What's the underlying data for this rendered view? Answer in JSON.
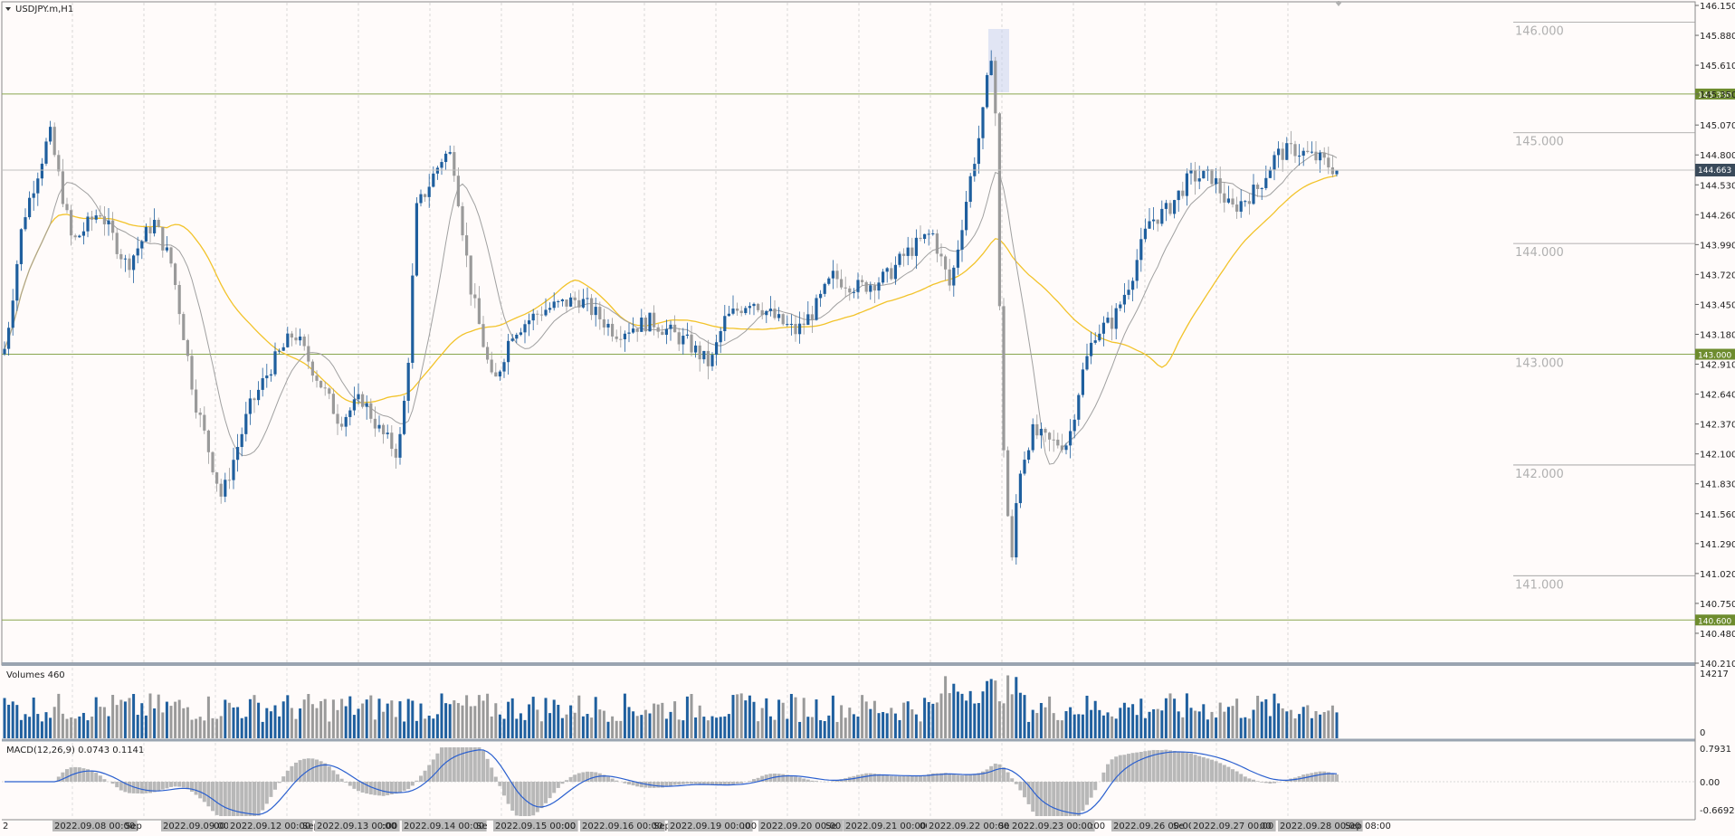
{
  "window": {
    "title": "USDJPY.m,H1"
  },
  "panes": {
    "volumes_label": "Volumes 460",
    "macd_label": "MACD(12,26,9) 0.0743 0.1141"
  },
  "price_axis": {
    "ticks": [
      "146.150",
      "145.880",
      "145.610",
      "145.350",
      "145.070",
      "144.800",
      "144.530",
      "144.260",
      "143.990",
      "143.720",
      "143.450",
      "143.180",
      "142.910",
      "142.640",
      "142.370",
      "142.100",
      "141.830",
      "141.560",
      "141.290",
      "141.020",
      "140.750",
      "140.480",
      "140.210"
    ],
    "current_price": "144.663"
  },
  "volume_axis": {
    "max": "14217",
    "min": "0"
  },
  "macd_axis": {
    "top": "0.7931",
    "zero": "0.00",
    "bottom": "-0.6692"
  },
  "levels": [
    {
      "label": "146.000"
    },
    {
      "label": "145.000"
    },
    {
      "label": "144.000"
    },
    {
      "label": "143.000"
    },
    {
      "label": "142.000"
    },
    {
      "label": "141.000"
    }
  ],
  "horizontal_lines": [
    {
      "label": "145.350"
    },
    {
      "label": "143.000"
    },
    {
      "label": "140.600"
    }
  ],
  "x_labels": [
    "2",
    "2022.09.08 00:00",
    "Sep",
    "2022.09.09 00:00",
    "00",
    "2022.09.12 00:00",
    "Sep",
    "2022.09.13 00:00",
    ":00",
    "2022.09.14 00:00",
    "Se",
    "2022.09.15 00:00",
    ":00",
    "2022.09.16 00:00",
    "Sep",
    "2022.09.19 00:00",
    ":00",
    "2022.09.20 00:00",
    "Se",
    "2022.09.21 00:00",
    "00",
    "2022.09.22 00:00",
    "Se",
    "2022.09.23 00:00",
    ":00",
    "2022.09.26 00:00",
    "Se",
    "2022.09.27 00:00",
    "00",
    "2022.09.28 00:00",
    "Sep 08:00"
  ],
  "colors": {
    "bull": "#1f5f9e",
    "bear": "#9a9a9a",
    "ma_slow": "#f2c32a",
    "ma_fast": "#a0a0a0",
    "macd_signal": "#2a5fcf",
    "level_line": "#8aa64f",
    "tag_bg": "#6e8c2e"
  }
}
